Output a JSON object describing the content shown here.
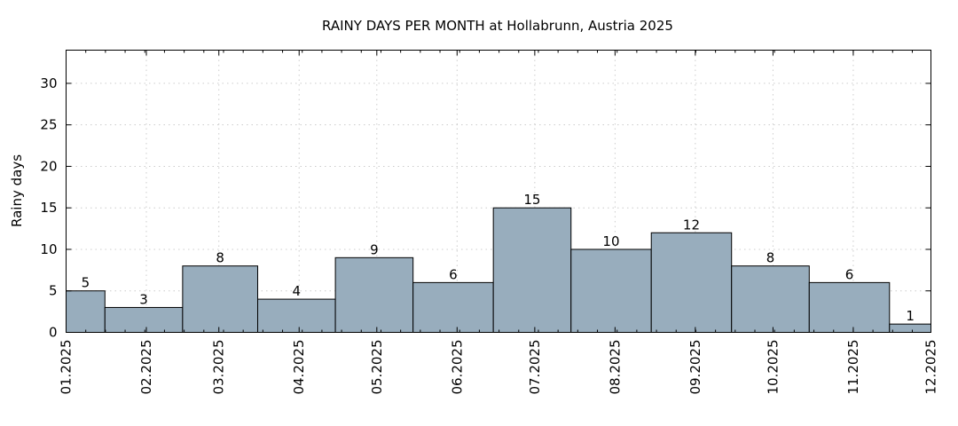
{
  "chart_data": {
    "type": "bar",
    "title": "RAINY DAYS PER MONTH at Hollabrunn, Austria 2025",
    "xlabel": "",
    "ylabel": "Rainy days",
    "x": [
      "2025-01-01",
      "2025-01-16",
      "2025-02-15",
      "2025-03-16",
      "2025-04-15",
      "2025-05-15",
      "2025-06-15",
      "2025-07-15",
      "2025-08-15",
      "2025-09-15",
      "2025-10-15",
      "2025-11-15"
    ],
    "x_end": "2025-12-01",
    "values": [
      5,
      3,
      8,
      4,
      9,
      6,
      15,
      10,
      12,
      8,
      6,
      1
    ],
    "xticks": [
      "2025-01-01",
      "2025-02-01",
      "2025-03-01",
      "2025-04-01",
      "2025-05-01",
      "2025-06-01",
      "2025-07-01",
      "2025-08-01",
      "2025-09-01",
      "2025-10-01",
      "2025-11-01",
      "2025-12-01"
    ],
    "xtick_labels": [
      "01.2025",
      "02.2025",
      "03.2025",
      "04.2025",
      "05.2025",
      "06.2025",
      "07.2025",
      "08.2025",
      "09.2025",
      "10.2025",
      "11.2025",
      "12.2025"
    ],
    "ylim": [
      0,
      34
    ],
    "yticks": [
      0,
      5,
      10,
      15,
      20,
      25,
      30
    ],
    "grid": true,
    "colors": {
      "bar": "#98adbd",
      "edge": "#000000",
      "grid": "#cccccc"
    }
  }
}
